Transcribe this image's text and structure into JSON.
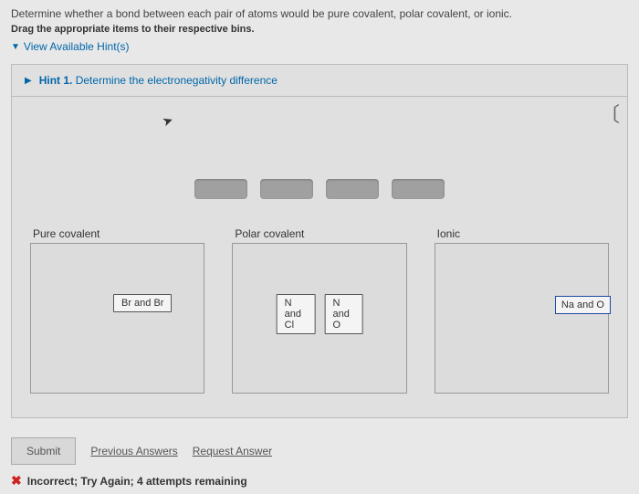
{
  "header": {
    "question": "Determine whether a bond between each pair of atoms would be pure covalent, polar covalent, or ionic.",
    "instruction": "Drag the appropriate items to their respective bins.",
    "hints_toggle": "View Available Hint(s)"
  },
  "hint": {
    "prefix": "Hint 1.",
    "text": "Determine the electronegativity difference"
  },
  "bins": {
    "pure": {
      "label": "Pure covalent",
      "chips": [
        "Br and Br"
      ]
    },
    "polar": {
      "label": "Polar covalent",
      "chips": [
        "N and Cl",
        "N and O"
      ]
    },
    "ionic": {
      "label": "Ionic",
      "chips": []
    }
  },
  "floating": {
    "label": "Na and O"
  },
  "actions": {
    "submit": "Submit",
    "previous": "Previous Answers",
    "request": "Request Answer"
  },
  "feedback": {
    "symbol": "✖",
    "bold": "Incorrect; Try Again; 4 attempts remaining"
  },
  "style": {
    "link_color": "#0066aa",
    "error_color": "#cc2222",
    "slot_color": "#a0a0a0"
  }
}
